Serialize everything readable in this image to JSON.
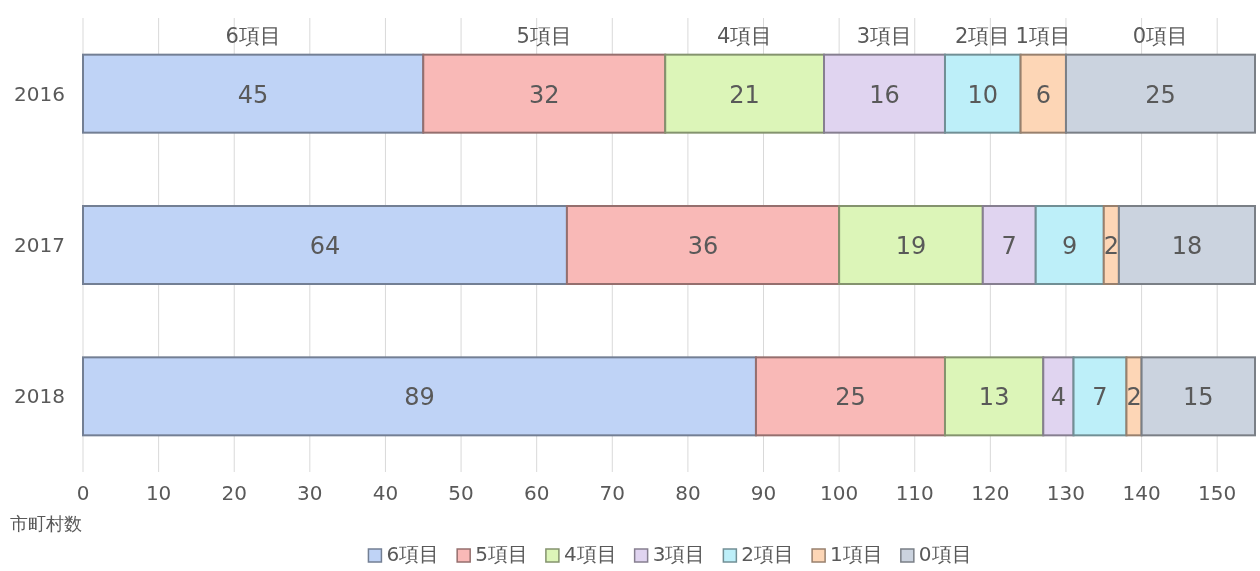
{
  "chart_data": {
    "type": "bar",
    "orientation": "horizontal",
    "stacked": true,
    "categories": [
      "2016",
      "2017",
      "2018"
    ],
    "series": [
      {
        "name": "6項目",
        "color": "#bfd3f6",
        "values": [
          45,
          64,
          89
        ]
      },
      {
        "name": "5項目",
        "color": "#f9b9b7",
        "values": [
          32,
          36,
          25
        ]
      },
      {
        "name": "4項目",
        "color": "#dcf5b8",
        "values": [
          21,
          19,
          13
        ]
      },
      {
        "name": "3項目",
        "color": "#e0d4f0",
        "values": [
          16,
          7,
          4
        ]
      },
      {
        "name": "2項目",
        "color": "#bdeff9",
        "values": [
          10,
          9,
          7
        ]
      },
      {
        "name": "1項目",
        "color": "#fdd6b6",
        "values": [
          6,
          2,
          2
        ]
      },
      {
        "name": "0項目",
        "color": "#cbd3df",
        "values": [
          25,
          18,
          15
        ]
      }
    ],
    "xlim": [
      0,
      155
    ],
    "xticks": [
      0,
      10,
      20,
      30,
      40,
      50,
      60,
      70,
      80,
      90,
      100,
      110,
      120,
      130,
      140,
      150
    ],
    "xlabel": "市町村数",
    "grid": "x",
    "legend": "bottom",
    "data_labels": true,
    "annotations": [
      "6項目",
      "5項目",
      "4項目",
      "3項目",
      "2項目",
      "1項目",
      "0項目"
    ]
  }
}
